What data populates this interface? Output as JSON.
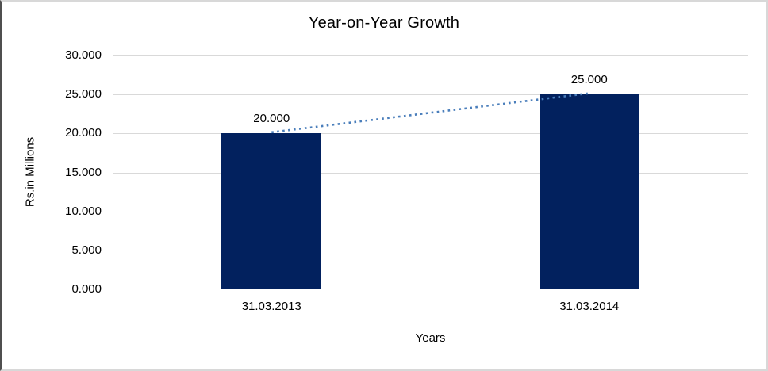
{
  "frame": {
    "background": "#ffffff",
    "border_color": "#d8d8d8",
    "left_edge_color": "#4f4f4f"
  },
  "chart_data": {
    "type": "bar",
    "title": "Year-on-Year Growth",
    "xlabel": "Years",
    "ylabel": "Rs.in Millions",
    "categories": [
      "31.03.2013",
      "31.03.2014"
    ],
    "values": [
      20,
      25
    ],
    "value_labels": [
      "20.000",
      "25.000"
    ],
    "y_ticks": [
      "0.000",
      "5.000",
      "10.000",
      "15.000",
      "20.000",
      "25.000",
      "30.000"
    ],
    "ylim": [
      0,
      30
    ],
    "grid": true,
    "legend_position": "none",
    "bar_color": "#02215E",
    "gridline_color": "#d9d9d9",
    "axis_line_color": "#d9d9d9",
    "text_color": "#000000",
    "trendline": {
      "type": "linear",
      "style": "dotted",
      "color": "#4A7EBB",
      "connects": "bar tops"
    }
  }
}
